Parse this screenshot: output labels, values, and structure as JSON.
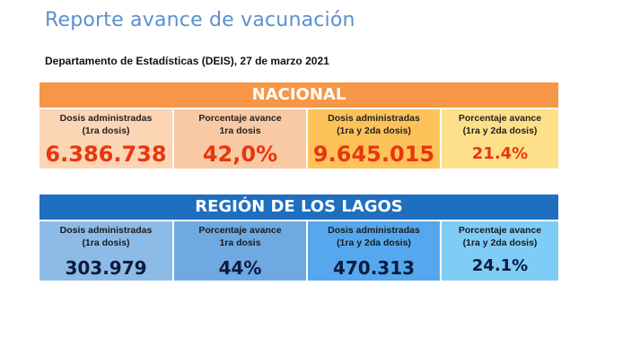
{
  "header": {
    "title": "Reporte avance de vacunación",
    "subtitle": "Departamento de Estadísticas (DEIS), 27 de marzo 2021"
  },
  "nacional": {
    "heading": "NACIONAL",
    "cells": [
      {
        "label": "Dosis administradas\n(1ra dosis)",
        "value": "6.386.738"
      },
      {
        "label": "Porcentaje avance\n1ra dosis",
        "value": "42,0%"
      },
      {
        "label": "Dosis administradas\n(1ra y 2da dosis)",
        "value": "9.645.015"
      },
      {
        "label": "Porcentaje avance\n(1ra y 2da dosis)",
        "value": "21.4%"
      }
    ]
  },
  "region": {
    "heading": "REGIÓN DE LOS LAGOS",
    "cells": [
      {
        "label": "Dosis administradas\n(1ra dosis)",
        "value": "303.979"
      },
      {
        "label": "Porcentaje avance\n1ra dosis",
        "value": "44%"
      },
      {
        "label": "Dosis administradas\n(1ra y 2da dosis)",
        "value": "470.313"
      },
      {
        "label": "Porcentaje avance\n(1ra y 2da dosis)",
        "value": "24.1%"
      }
    ]
  },
  "colors": {
    "title": "#5b8fd0",
    "nacional_header": "#f79646",
    "nacional_value": "#e8360f",
    "region_header": "#1f6fc1",
    "region_value": "#0d1b3d"
  }
}
